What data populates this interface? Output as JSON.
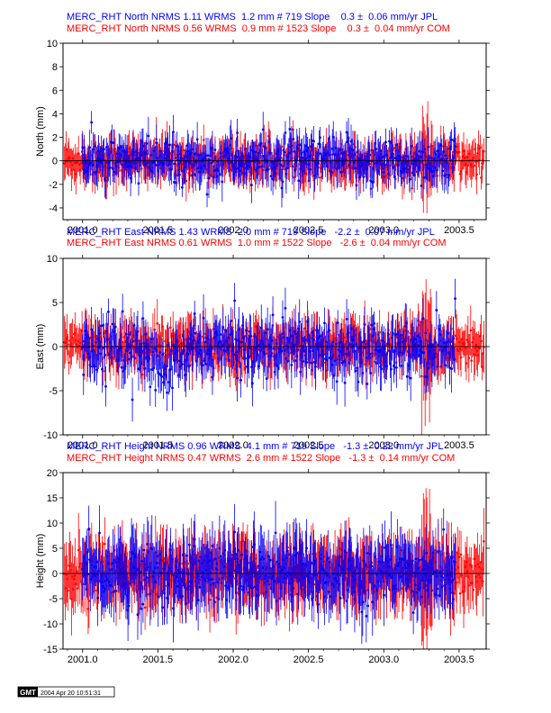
{
  "colors": {
    "jpl": "#0000ff",
    "com": "#ff0000",
    "frame": "#000000"
  },
  "chart_data": [
    {
      "type": "scatter",
      "component": "North",
      "ylabel": "North (mm)",
      "xlim": [
        2000.87,
        2003.68
      ],
      "ylim": [
        -5,
        10
      ],
      "yticks": [
        -4,
        -2,
        0,
        2,
        4,
        6,
        8,
        10
      ],
      "xticks": [
        2001.0,
        2001.5,
        2002.0,
        2002.5,
        2003.0,
        2003.5
      ],
      "xtick_labels": [
        "2001.0",
        "2001.5",
        "2002.0",
        "2002.5",
        "2003.0",
        "2003.5"
      ],
      "ytick_labels": [
        "-4",
        "-2",
        "0",
        "2",
        "4",
        "6",
        "8",
        "10"
      ],
      "header_lines": [
        "MERC_RHT North NRMS 1.11 WRMS  1.2 mm # 719 Slope    0.3 ±  0.06 mm/yr JPL",
        "MERC_RHT North NRMS 0.56 WRMS  0.9 mm # 1523 Slope    0.3 ±  0.04 mm/yr COM"
      ],
      "series": [
        {
          "name": "JPL",
          "site": "MERC_RHT",
          "nrms": 1.11,
          "wrms_mm": 1.2,
          "n": 719,
          "slope_mm_yr": 0.3,
          "slope_sigma": 0.06,
          "color": "#0000ff"
        },
        {
          "name": "COM",
          "site": "MERC_RHT",
          "nrms": 0.56,
          "wrms_mm": 0.9,
          "n": 1523,
          "slope_mm_yr": 0.3,
          "slope_sigma": 0.04,
          "color": "#ff0000"
        }
      ]
    },
    {
      "type": "scatter",
      "component": "East",
      "ylabel": "East (mm)",
      "xlim": [
        2000.87,
        2003.68
      ],
      "ylim": [
        -10,
        10
      ],
      "yticks": [
        -10,
        -5,
        0,
        5,
        10
      ],
      "xticks": [
        2001.0,
        2001.5,
        2002.0,
        2002.5,
        2003.0,
        2003.5
      ],
      "xtick_labels": [
        "2001.0",
        "2001.5",
        "2002.0",
        "2002.5",
        "2003.0",
        "2003.5"
      ],
      "ytick_labels": [
        "-10",
        "-5",
        "0",
        "5",
        "10"
      ],
      "header_lines": [
        "MERC_RHT East NRMS 1.43 WRMS  2.0 mm # 719 Slope   -2.2 ±  0.07 mm/yr JPL",
        "MERC_RHT East NRMS 0.61 WRMS  1.0 mm # 1522 Slope   -2.6 ±  0.04 mm/yr COM"
      ],
      "series": [
        {
          "name": "JPL",
          "site": "MERC_RHT",
          "nrms": 1.43,
          "wrms_mm": 2.0,
          "n": 719,
          "slope_mm_yr": -2.2,
          "slope_sigma": 0.07,
          "color": "#0000ff"
        },
        {
          "name": "COM",
          "site": "MERC_RHT",
          "nrms": 0.61,
          "wrms_mm": 1.0,
          "n": 1522,
          "slope_mm_yr": -2.6,
          "slope_sigma": 0.04,
          "color": "#ff0000"
        }
      ]
    },
    {
      "type": "scatter",
      "component": "Height",
      "ylabel": "Height (mm)",
      "xlim": [
        2000.87,
        2003.68
      ],
      "ylim": [
        -15,
        20
      ],
      "yticks": [
        -15,
        -10,
        -5,
        0,
        5,
        10,
        15,
        20
      ],
      "xticks": [
        2001.0,
        2001.5,
        2002.0,
        2002.5,
        2003.0,
        2003.5
      ],
      "xtick_labels": [
        "2001.0",
        "2001.5",
        "2002.0",
        "2002.5",
        "2003.0",
        "2003.5"
      ],
      "ytick_labels": [
        "-15",
        "-10",
        "-5",
        "0",
        "5",
        "10",
        "15",
        "20"
      ],
      "header_lines": [
        "MERC_RHT Height NRMS 0.96 WRMS  4.1 mm # 719 Slope   -1.3 ±  0.22 mm/yr JPL",
        "MERC_RHT Height NRMS 0.47 WRMS  2.6 mm # 1522 Slope   -1.3 ±  0.14 mm/yr COM"
      ],
      "series": [
        {
          "name": "JPL",
          "site": "MERC_RHT",
          "nrms": 0.96,
          "wrms_mm": 4.1,
          "n": 719,
          "slope_mm_yr": -1.3,
          "slope_sigma": 0.22,
          "color": "#0000ff"
        },
        {
          "name": "COM",
          "site": "MERC_RHT",
          "nrms": 0.47,
          "wrms_mm": 2.6,
          "n": 1522,
          "slope_mm_yr": -1.3,
          "slope_sigma": 0.14,
          "color": "#ff0000"
        }
      ]
    }
  ],
  "footer": {
    "logo_text": "GMT",
    "timestamp": "2004 Apr 20 10:51:31"
  }
}
